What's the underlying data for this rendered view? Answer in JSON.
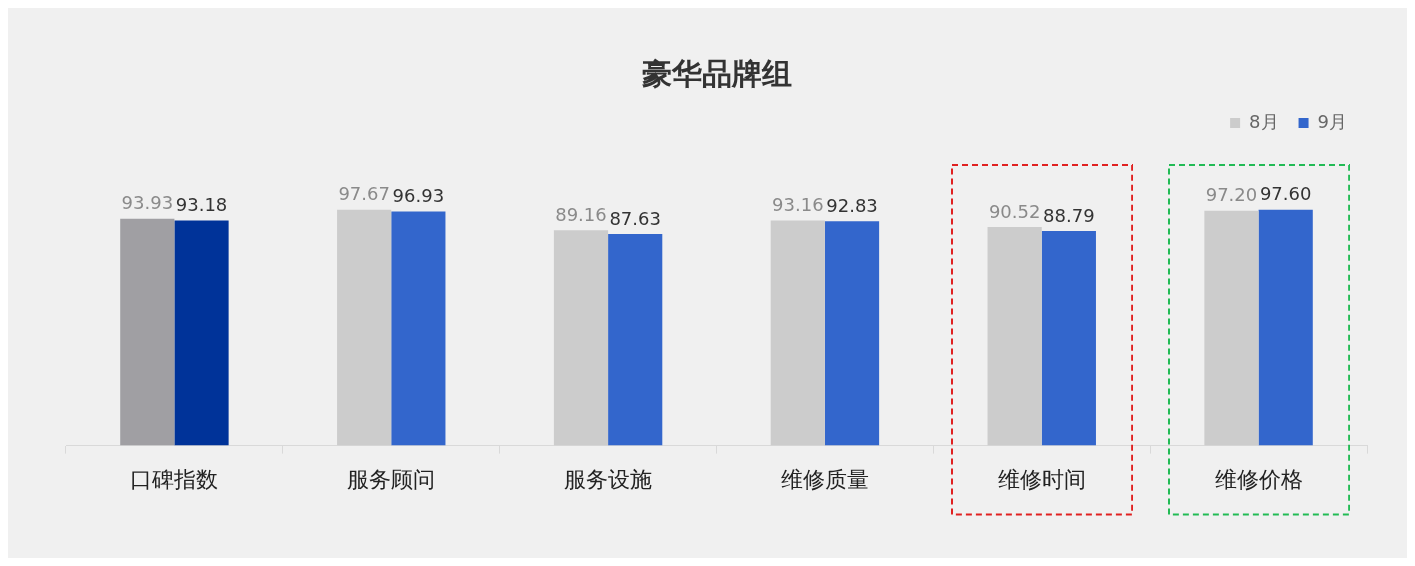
{
  "chart_data": {
    "type": "bar",
    "title": "豪华品牌组",
    "categories": [
      "口碑指数",
      "服务顾问",
      "服务设施",
      "维修质量",
      "维修时间",
      "维修价格"
    ],
    "series": [
      {
        "name": "8月",
        "color": "#cccccc",
        "colors": [
          "#a09fa3",
          "#cccccc",
          "#cccccc",
          "#cccccc",
          "#cccccc",
          "#cccccc"
        ],
        "values": [
          93.93,
          97.67,
          89.16,
          93.16,
          90.52,
          97.2
        ],
        "value_labels": [
          "93.93",
          "97.67",
          "89.16",
          "93.16",
          "90.52",
          "97.20"
        ]
      },
      {
        "name": "9月",
        "color": "#3366cc",
        "colors": [
          "#003399",
          "#3366cc",
          "#3366cc",
          "#3366cc",
          "#3366cc",
          "#3366cc"
        ],
        "values": [
          93.18,
          96.93,
          87.63,
          92.83,
          88.79,
          97.6
        ],
        "value_labels": [
          "93.18",
          "96.93",
          "87.63",
          "92.83",
          "88.79",
          "97.60"
        ]
      }
    ],
    "tick_labels": "x",
    "legend": "top right"
  }
}
